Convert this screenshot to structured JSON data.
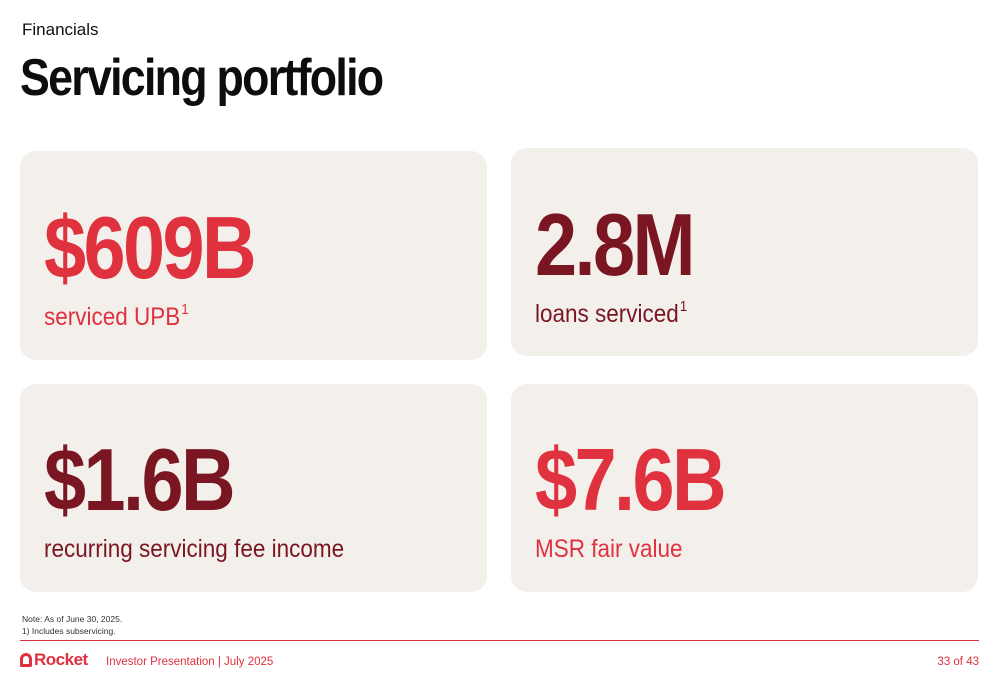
{
  "header": {
    "kicker": "Financials",
    "title": "Servicing portfolio"
  },
  "cards": [
    {
      "value": "$609B",
      "label": "serviced UPB",
      "footnote": "1",
      "color": "#e0313f"
    },
    {
      "value": "2.8M",
      "label": "loans serviced",
      "footnote": "1",
      "color": "#7a1621"
    },
    {
      "value": "$1.6B",
      "label": "recurring servicing fee income",
      "footnote": "",
      "color": "#7a1621"
    },
    {
      "value": "$7.6B",
      "label": "MSR fair value",
      "footnote": "",
      "color": "#e0313f"
    }
  ],
  "notes": {
    "line1": "Note: As of June 30, 2025.",
    "line2": "1) Includes subservicing."
  },
  "footer": {
    "logo_text": "Rocket",
    "presentation": "Investor Presentation | July 2025",
    "page": "33 of 43"
  },
  "colors": {
    "brand_red": "#e0313f",
    "dark_red": "#7a1621",
    "card_bg": "#f3f0ec"
  }
}
